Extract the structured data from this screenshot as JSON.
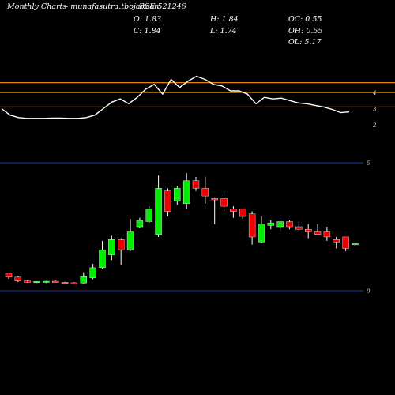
{
  "header": {
    "title": "Monthly Charts",
    "source": "- munafasutra.tbojar.com",
    "symbol": "BSE 521246",
    "o_label": "O:",
    "o_value": "1.83",
    "c_label": "C:",
    "c_value": "1.84",
    "h_label": "H:",
    "h_value": "1.84",
    "l_label": "L:",
    "l_value": "1.74",
    "oc_label": "OC:",
    "oc_value": "0.55",
    "oh_label": "OH:",
    "oh_value": "0.55",
    "ol_label": "OL:",
    "ol_value": "5.17"
  },
  "chart_data": [
    {
      "type": "line",
      "panel": "indicator",
      "y_ticks": [
        "4",
        "3",
        "2"
      ],
      "levels": [
        4.6,
        4.0,
        3.1
      ],
      "level_color": "#ff9900",
      "line_color": "#ffffff",
      "values": [
        3.0,
        2.6,
        2.45,
        2.4,
        2.4,
        2.4,
        2.42,
        2.42,
        2.4,
        2.4,
        2.45,
        2.6,
        3.0,
        3.4,
        3.6,
        3.3,
        3.7,
        4.2,
        4.5,
        3.9,
        4.8,
        4.3,
        4.7,
        5.0,
        4.8,
        4.5,
        4.4,
        4.1,
        4.1,
        3.9,
        3.3,
        3.7,
        3.6,
        3.65,
        3.5,
        3.35,
        3.3,
        3.2,
        3.1,
        2.95,
        2.75,
        2.8
      ]
    },
    {
      "type": "candlestick",
      "panel": "price",
      "y_ticks": [
        "5",
        "0"
      ],
      "up_color": "#00ee00",
      "down_color": "#ee0000",
      "grid_color": "#1f3aa8",
      "candles": [
        {
          "o": 0.68,
          "h": 0.68,
          "l": 0.46,
          "c": 0.53
        },
        {
          "o": 0.53,
          "h": 0.58,
          "l": 0.34,
          "c": 0.38
        },
        {
          "o": 0.38,
          "h": 0.4,
          "l": 0.31,
          "c": 0.33
        },
        {
          "o": 0.33,
          "h": 0.37,
          "l": 0.3,
          "c": 0.36
        },
        {
          "o": 0.34,
          "h": 0.38,
          "l": 0.3,
          "c": 0.37
        },
        {
          "o": 0.37,
          "h": 0.39,
          "l": 0.32,
          "c": 0.34
        },
        {
          "o": 0.33,
          "h": 0.35,
          "l": 0.29,
          "c": 0.31
        },
        {
          "o": 0.31,
          "h": 0.33,
          "l": 0.28,
          "c": 0.29
        },
        {
          "o": 0.3,
          "h": 0.72,
          "l": 0.28,
          "c": 0.55
        },
        {
          "o": 0.5,
          "h": 1.05,
          "l": 0.45,
          "c": 0.9
        },
        {
          "o": 0.9,
          "h": 1.95,
          "l": 0.85,
          "c": 1.6
        },
        {
          "o": 1.4,
          "h": 2.15,
          "l": 1.2,
          "c": 2.0
        },
        {
          "o": 2.0,
          "h": 2.05,
          "l": 1.0,
          "c": 1.6
        },
        {
          "o": 1.6,
          "h": 2.8,
          "l": 1.55,
          "c": 2.3
        },
        {
          "o": 2.5,
          "h": 2.85,
          "l": 2.45,
          "c": 2.75
        },
        {
          "o": 2.7,
          "h": 3.3,
          "l": 2.65,
          "c": 3.2
        },
        {
          "o": 2.2,
          "h": 4.5,
          "l": 2.1,
          "c": 4.0
        },
        {
          "o": 3.9,
          "h": 4.0,
          "l": 2.9,
          "c": 3.1
        },
        {
          "o": 3.5,
          "h": 4.1,
          "l": 3.35,
          "c": 4.0
        },
        {
          "o": 3.4,
          "h": 4.6,
          "l": 3.2,
          "c": 4.3
        },
        {
          "o": 4.3,
          "h": 4.45,
          "l": 3.9,
          "c": 4.0
        },
        {
          "o": 4.0,
          "h": 4.45,
          "l": 3.4,
          "c": 3.7
        },
        {
          "o": 3.6,
          "h": 3.65,
          "l": 2.6,
          "c": 3.55
        },
        {
          "o": 3.6,
          "h": 3.9,
          "l": 3.0,
          "c": 3.3
        },
        {
          "o": 3.2,
          "h": 3.3,
          "l": 2.85,
          "c": 3.1
        },
        {
          "o": 3.2,
          "h": 3.2,
          "l": 2.8,
          "c": 2.9
        },
        {
          "o": 3.0,
          "h": 3.1,
          "l": 1.8,
          "c": 2.1
        },
        {
          "o": 1.9,
          "h": 2.9,
          "l": 1.85,
          "c": 2.6
        },
        {
          "o": 2.55,
          "h": 2.75,
          "l": 2.4,
          "c": 2.65
        },
        {
          "o": 2.5,
          "h": 2.75,
          "l": 2.3,
          "c": 2.7
        },
        {
          "o": 2.7,
          "h": 2.75,
          "l": 2.4,
          "c": 2.5
        },
        {
          "o": 2.5,
          "h": 2.7,
          "l": 2.3,
          "c": 2.4
        },
        {
          "o": 2.4,
          "h": 2.6,
          "l": 2.05,
          "c": 2.3
        },
        {
          "o": 2.3,
          "h": 2.6,
          "l": 2.2,
          "c": 2.2
        },
        {
          "o": 2.3,
          "h": 2.5,
          "l": 1.95,
          "c": 2.1
        },
        {
          "o": 2.0,
          "h": 2.1,
          "l": 1.65,
          "c": 1.9
        },
        {
          "o": 2.1,
          "h": 2.1,
          "l": 1.55,
          "c": 1.65
        },
        {
          "o": 1.83,
          "h": 1.84,
          "l": 1.74,
          "c": 1.84
        }
      ]
    }
  ]
}
